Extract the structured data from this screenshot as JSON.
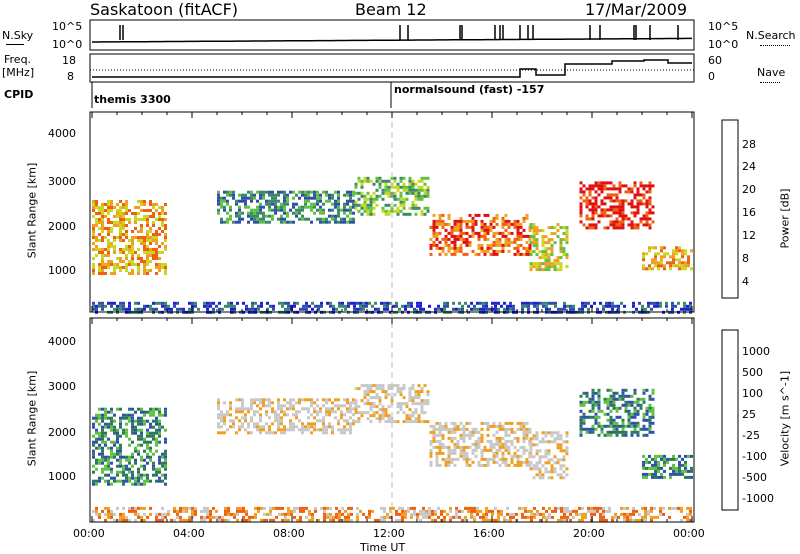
{
  "header": {
    "station": "Saskatoon (fitACF)",
    "beam": "Beam 12",
    "date": "17/Mar/2009"
  },
  "noise_panel": {
    "left_label": "N.Sky",
    "right_label": "N.Search",
    "left_ticks": [
      "10^5",
      "10^0"
    ],
    "right_ticks": [
      "10^5",
      "10^0"
    ]
  },
  "freq_panel": {
    "left_label_1": "Freq.",
    "left_label_2": "[MHz]",
    "left_ticks": [
      "18",
      "8"
    ],
    "right_label": "Nave",
    "right_ticks": [
      "60",
      "0"
    ]
  },
  "cpid": {
    "label": "CPID",
    "programs": [
      {
        "start_ut": "00:00",
        "name": "themis 3300"
      },
      {
        "start_ut": "12:00",
        "name": "normalsound (fast) -157"
      }
    ]
  },
  "colors": {
    "power_scale": [
      "#2020d8",
      "#3050a8",
      "#3a8a6a",
      "#60c040",
      "#c8d820",
      "#f0a020",
      "#f06010",
      "#e01010"
    ],
    "velocity_scale": [
      "#3050b0",
      "#2a7a5a",
      "#60c040",
      "#c8c8c8",
      "#c8c8c8",
      "#f0a020",
      "#f06010",
      "#e01010"
    ]
  },
  "chart_data": [
    {
      "type": "heatmap",
      "quantity": "Power",
      "ylabel": "Slant Range [km]",
      "ylim": [
        180,
        4500
      ],
      "yticks": [
        "4000",
        "3000",
        "2000",
        "1000"
      ],
      "colorbar_label": "Power [dB]",
      "colorbar_ticks": [
        "28",
        "24",
        "20",
        "16",
        "12",
        "8",
        "4"
      ],
      "bands": [
        {
          "t0": 0.0,
          "t1": 3.0,
          "r0": 1000,
          "r1": 2600,
          "level": 5
        },
        {
          "t0": 5.0,
          "t1": 10.5,
          "r0": 2100,
          "r1": 2800,
          "level": 2
        },
        {
          "t0": 10.5,
          "t1": 13.5,
          "r0": 2300,
          "r1": 3100,
          "level": 3
        },
        {
          "t0": 13.5,
          "t1": 17.5,
          "r0": 1400,
          "r1": 2300,
          "level": 6
        },
        {
          "t0": 17.5,
          "t1": 19.0,
          "r0": 1100,
          "r1": 2100,
          "level": 4
        },
        {
          "t0": 19.5,
          "t1": 22.5,
          "r0": 2000,
          "r1": 3000,
          "level": 7
        },
        {
          "t0": 22.0,
          "t1": 24.0,
          "r0": 1100,
          "r1": 1600,
          "level": 5
        },
        {
          "t0": 0.0,
          "t1": 24.0,
          "r0": 200,
          "r1": 400,
          "level": 1
        }
      ]
    },
    {
      "type": "heatmap",
      "quantity": "Velocity",
      "ylabel": "Slant Range [km]",
      "xlabel": "Time UT",
      "ylim": [
        180,
        4500
      ],
      "yticks": [
        "4000",
        "3000",
        "2000",
        "1000"
      ],
      "xticks": [
        "00:00",
        "04:00",
        "08:00",
        "12:00",
        "16:00",
        "20:00",
        "00:00"
      ],
      "xlim": [
        0,
        24
      ],
      "colorbar_label": "Velocity [m s^-1]",
      "colorbar_ticks": [
        "1000",
        "500",
        "100",
        "25",
        "-25",
        "-100",
        "-500",
        "-1000"
      ],
      "bands": [
        {
          "t0": 0.0,
          "t1": 3.0,
          "r0": 1000,
          "r1": 2600,
          "level": 1
        },
        {
          "t0": 5.0,
          "t1": 10.5,
          "r0": 2100,
          "r1": 2800,
          "level": 4
        },
        {
          "t0": 10.5,
          "t1": 13.5,
          "r0": 2300,
          "r1": 3100,
          "level": 4
        },
        {
          "t0": 13.5,
          "t1": 17.5,
          "r0": 1400,
          "r1": 2300,
          "level": 4
        },
        {
          "t0": 17.5,
          "t1": 19.0,
          "r0": 1100,
          "r1": 2100,
          "level": 4
        },
        {
          "t0": 19.5,
          "t1": 22.5,
          "r0": 2000,
          "r1": 3000,
          "level": 1
        },
        {
          "t0": 22.0,
          "t1": 24.0,
          "r0": 1100,
          "r1": 1600,
          "level": 1
        },
        {
          "t0": 0.0,
          "t1": 24.0,
          "r0": 200,
          "r1": 500,
          "level": 5
        }
      ]
    }
  ]
}
